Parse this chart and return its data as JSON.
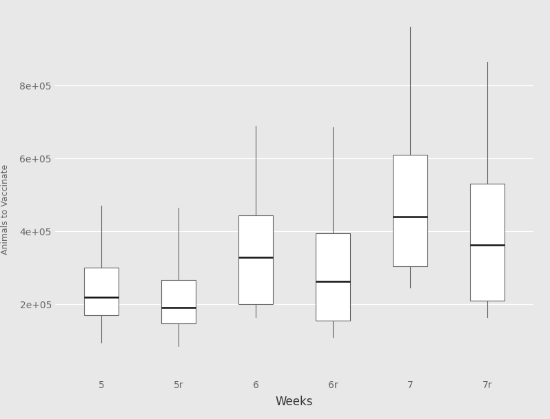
{
  "categories": [
    "5",
    "5r",
    "6",
    "6r",
    "7",
    "7r"
  ],
  "xlabel": "Weeks",
  "ylabel": "Animals to Vaccinate",
  "background_color": "#e8e8e8",
  "box_facecolor": "white",
  "box_edgecolor": "#666666",
  "median_color": "#111111",
  "whisker_color": "#666666",
  "grid_color": "#ffffff",
  "ylim": [
    0,
    1000000
  ],
  "yticks": [
    200000,
    400000,
    600000,
    800000
  ],
  "ytick_labels": [
    "2e+05",
    "4e+05",
    "6e+05",
    "8e+05"
  ],
  "boxes": [
    {
      "q1": 170000,
      "median": 220000,
      "q3": 300000,
      "whisker_low": 95000,
      "whisker_high": 470000
    },
    {
      "q1": 148000,
      "median": 190000,
      "q3": 267000,
      "whisker_low": 85000,
      "whisker_high": 465000
    },
    {
      "q1": 200000,
      "median": 328000,
      "q3": 443000,
      "whisker_low": 165000,
      "whisker_high": 690000
    },
    {
      "q1": 155000,
      "median": 262000,
      "q3": 395000,
      "whisker_low": 110000,
      "whisker_high": 685000
    },
    {
      "q1": 305000,
      "median": 440000,
      "q3": 610000,
      "whisker_low": 245000,
      "whisker_high": 960000
    },
    {
      "q1": 210000,
      "median": 362000,
      "q3": 530000,
      "whisker_low": 165000,
      "whisker_high": 865000
    }
  ],
  "figwidth": 7.98,
  "figheight": 6.09,
  "dpi": 100
}
